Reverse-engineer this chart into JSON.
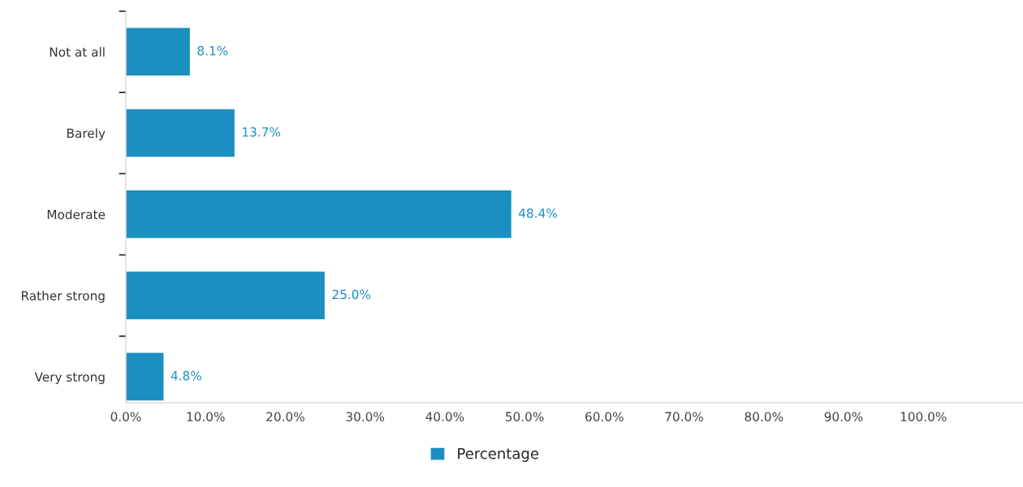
{
  "chart_data": {
    "type": "bar",
    "orientation": "horizontal",
    "categories": [
      "Not at all",
      "Barely",
      "Moderate",
      "Rather strong",
      "Very strong"
    ],
    "series": [
      {
        "name": "Percentage",
        "color": "#1a8fc0",
        "values": [
          8.1,
          13.7,
          48.4,
          25.0,
          4.8
        ]
      }
    ],
    "value_labels": [
      "8.1%",
      "13.7%",
      "48.4%",
      "25.0%",
      "4.8%"
    ],
    "xlim": [
      0,
      112.5
    ],
    "xticks": [
      {
        "value": 0,
        "label": "0.0%"
      },
      {
        "value": 10,
        "label": "10.0%"
      },
      {
        "value": 20,
        "label": "20.0%"
      },
      {
        "value": 30,
        "label": "30.0%"
      },
      {
        "value": 40,
        "label": "40.0%"
      },
      {
        "value": 50,
        "label": "50.0%"
      },
      {
        "value": 60,
        "label": "60.0%"
      },
      {
        "value": 70,
        "label": "70.0%"
      },
      {
        "value": 80,
        "label": "80.0%"
      },
      {
        "value": 90,
        "label": "90.0%"
      },
      {
        "value": 100,
        "label": "100.0%"
      }
    ],
    "grid": false,
    "legend": "bottom"
  }
}
